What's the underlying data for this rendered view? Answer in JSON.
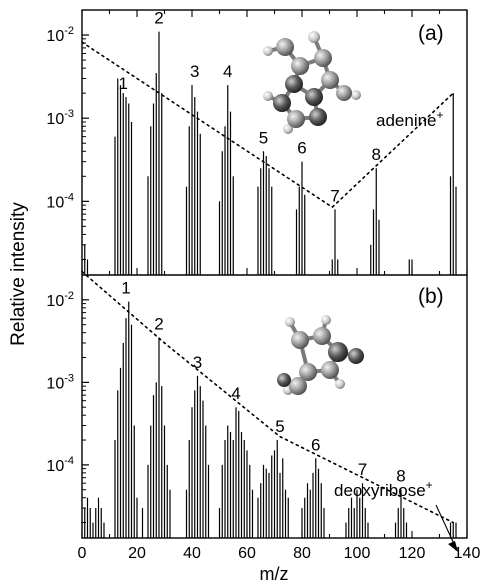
{
  "figure": {
    "xlabel": "m/z",
    "ylabel": "Relative intensity",
    "xticks": [
      "0",
      "20",
      "40",
      "60",
      "80",
      "100",
      "120",
      "140"
    ],
    "xlim": [
      0,
      140
    ]
  },
  "chart_data": [
    {
      "type": "bar",
      "panel_label": "(a)",
      "annotation": "adenine",
      "annotation_superscript": "+",
      "ylim": [
        1.3e-05,
        0.02
      ],
      "yscale": "log",
      "ytick_labels": [
        {
          "value": 0.01,
          "base": "10",
          "exp": "-2"
        },
        {
          "value": 0.001,
          "base": "10",
          "exp": "-3"
        },
        {
          "value": 0.0001,
          "base": "10",
          "exp": "-4"
        }
      ],
      "x": [
        1,
        2,
        12,
        13,
        14,
        15,
        16,
        17,
        18,
        24,
        25,
        26,
        27,
        28,
        29,
        38,
        39,
        40,
        41,
        42,
        43,
        50,
        51,
        52,
        53,
        54,
        55,
        64,
        65,
        66,
        67,
        68,
        69,
        78,
        79,
        80,
        81,
        91,
        92,
        93,
        105,
        106,
        107,
        108,
        119,
        120,
        134,
        135,
        136
      ],
      "values": [
        3e-05,
        2e-05,
        0.0006,
        0.003,
        0.0025,
        0.002,
        0.0018,
        0.0015,
        0.0009,
        0.0002,
        0.0008,
        0.0015,
        0.0035,
        0.011,
        0.002,
        0.00015,
        0.0008,
        0.0025,
        0.0018,
        0.0012,
        0.00065,
        0.0001,
        0.0004,
        0.0008,
        0.0025,
        0.0012,
        0.0002,
        0.00015,
        0.00025,
        0.0004,
        0.00035,
        0.00025,
        0.00015,
        8e-05,
        0.00015,
        0.0003,
        0.00012,
        2e-05,
        8e-05,
        2e-05,
        3e-05,
        8e-05,
        0.00025,
        6e-05,
        2e-05,
        2e-05,
        0.0002,
        0.002,
        0.00015
      ],
      "envelope": {
        "style": "dotted",
        "x": [
          0,
          91,
          135
        ],
        "y": [
          0.0082,
          8.5e-05,
          0.002
        ]
      },
      "peak_labels": [
        {
          "text": "1",
          "x": 15,
          "y": 0.0018
        },
        {
          "text": "2",
          "x": 28,
          "y": 0.011
        },
        {
          "text": "3",
          "x": 41,
          "y": 0.0025
        },
        {
          "text": "4",
          "x": 53,
          "y": 0.0025
        },
        {
          "text": "5",
          "x": 66,
          "y": 0.0004
        },
        {
          "text": "6",
          "x": 80,
          "y": 0.0003
        },
        {
          "text": "7",
          "x": 92,
          "y": 8e-05
        },
        {
          "text": "8",
          "x": 107,
          "y": 0.00025
        }
      ]
    },
    {
      "type": "bar",
      "panel_label": "(b)",
      "annotation": "deoxyribose",
      "annotation_superscript": "+",
      "ylim": [
        1.3e-05,
        0.02
      ],
      "yscale": "log",
      "ytick_labels": [
        {
          "value": 0.01,
          "base": "10",
          "exp": "-2"
        },
        {
          "value": 0.001,
          "base": "10",
          "exp": "-3"
        },
        {
          "value": 0.0001,
          "base": "10",
          "exp": "-4"
        }
      ],
      "x": [
        1,
        2,
        3,
        4,
        5,
        6,
        7,
        8,
        12,
        13,
        14,
        15,
        16,
        17,
        18,
        19,
        20,
        22,
        24,
        25,
        26,
        27,
        28,
        29,
        30,
        31,
        32,
        38,
        39,
        40,
        41,
        42,
        43,
        44,
        45,
        46,
        50,
        51,
        52,
        53,
        54,
        55,
        56,
        57,
        58,
        59,
        60,
        61,
        62,
        64,
        65,
        66,
        67,
        68,
        69,
        70,
        71,
        72,
        73,
        74,
        75,
        80,
        81,
        82,
        83,
        84,
        85,
        86,
        87,
        88,
        96,
        97,
        98,
        99,
        100,
        101,
        102,
        103,
        104,
        114,
        115,
        116,
        117,
        118,
        134,
        135,
        136
      ],
      "values": [
        3e-05,
        4e-05,
        3e-05,
        2e-05,
        3e-05,
        4e-05,
        3e-05,
        2e-05,
        0.0002,
        0.0008,
        0.0015,
        0.003,
        0.006,
        0.0095,
        0.005,
        0.0003,
        4e-05,
        3e-05,
        0.0001,
        0.0003,
        0.0007,
        0.001,
        0.0035,
        0.0009,
        0.0003,
        0.0001,
        5e-05,
        5e-05,
        0.0002,
        0.0005,
        0.0008,
        0.0012,
        0.0009,
        0.0006,
        0.0003,
        0.0001,
        3e-05,
        0.0001,
        0.0002,
        0.0003,
        0.00025,
        0.0002,
        0.0005,
        0.00045,
        0.00025,
        0.0002,
        0.00015,
        0.0001,
        5e-05,
        4e-05,
        6e-05,
        0.0001,
        9e-05,
        8e-05,
        0.00013,
        0.00015,
        0.0002,
        8e-05,
        0.00012,
        5e-05,
        4e-05,
        3e-05,
        4e-05,
        6e-05,
        5e-05,
        8e-05,
        0.00012,
        9e-05,
        6e-05,
        3e-05,
        2e-05,
        3e-05,
        4e-05,
        3e-05,
        5e-05,
        4e-05,
        6e-05,
        3e-05,
        2e-05,
        2e-05,
        3e-05,
        5e-05,
        3e-05,
        2e-05,
        2e-05,
        2e-05,
        2e-05
      ],
      "envelope": {
        "style": "dotted",
        "x": [
          0,
          30,
          72,
          135
        ],
        "y": [
          0.022,
          0.003,
          0.00022,
          2e-05
        ]
      },
      "peak_labels": [
        {
          "text": "1",
          "x": 16,
          "y": 0.0095
        },
        {
          "text": "2",
          "x": 28,
          "y": 0.0035
        },
        {
          "text": "3",
          "x": 42,
          "y": 0.0012
        },
        {
          "text": "4",
          "x": 56,
          "y": 0.0005
        },
        {
          "text": "5",
          "x": 72,
          "y": 0.0002
        },
        {
          "text": "6",
          "x": 85,
          "y": 0.00012
        },
        {
          "text": "7",
          "x": 102,
          "y": 6e-05
        },
        {
          "text": "8",
          "x": 116,
          "y": 5e-05
        }
      ]
    }
  ]
}
